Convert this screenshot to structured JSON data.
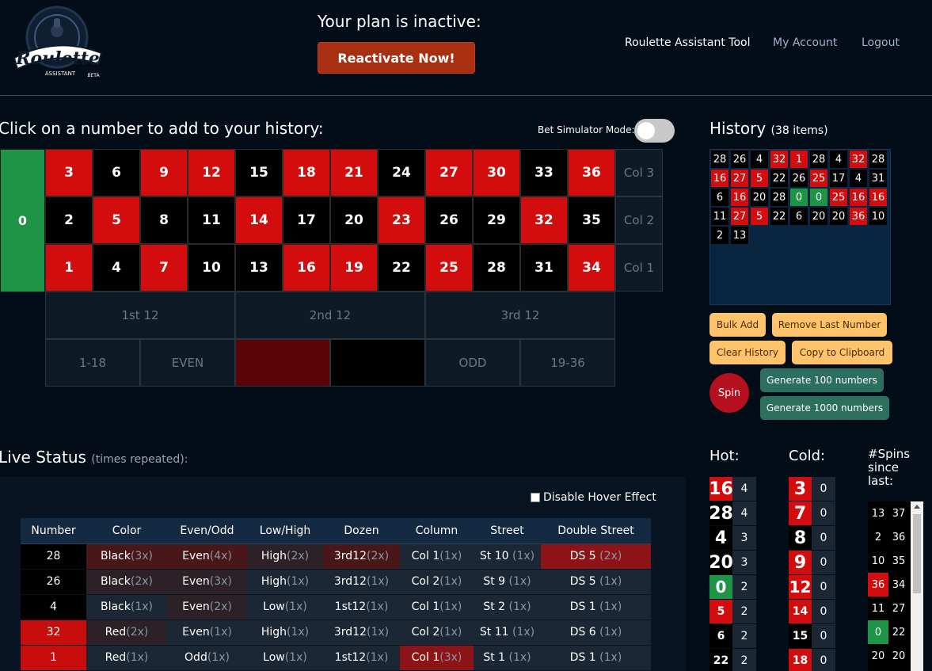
{
  "header": {
    "logo_text": "Roulette",
    "logo_sub": "ASSISTANT",
    "logo_beta": "BETA",
    "plan_text": "Your plan is inactive:",
    "reactivate_label": "Reactivate Now!",
    "nav": [
      "Roulette Assistant Tool",
      "My Account",
      "Logout"
    ]
  },
  "board": {
    "title": "Click on a number to add to your history:",
    "sim_label": "Bet Simulator Mode:",
    "zero": "0",
    "rows": [
      [
        {
          "n": "3",
          "c": "red"
        },
        {
          "n": "6",
          "c": "black"
        },
        {
          "n": "9",
          "c": "red"
        },
        {
          "n": "12",
          "c": "red"
        },
        {
          "n": "15",
          "c": "black"
        },
        {
          "n": "18",
          "c": "red"
        },
        {
          "n": "21",
          "c": "red"
        },
        {
          "n": "24",
          "c": "black"
        },
        {
          "n": "27",
          "c": "red"
        },
        {
          "n": "30",
          "c": "red"
        },
        {
          "n": "33",
          "c": "black"
        },
        {
          "n": "36",
          "c": "red"
        }
      ],
      [
        {
          "n": "2",
          "c": "black"
        },
        {
          "n": "5",
          "c": "red"
        },
        {
          "n": "8",
          "c": "black"
        },
        {
          "n": "11",
          "c": "black"
        },
        {
          "n": "14",
          "c": "red"
        },
        {
          "n": "17",
          "c": "black"
        },
        {
          "n": "20",
          "c": "black"
        },
        {
          "n": "23",
          "c": "red"
        },
        {
          "n": "26",
          "c": "black"
        },
        {
          "n": "29",
          "c": "black"
        },
        {
          "n": "32",
          "c": "red"
        },
        {
          "n": "35",
          "c": "black"
        }
      ],
      [
        {
          "n": "1",
          "c": "red"
        },
        {
          "n": "4",
          "c": "black"
        },
        {
          "n": "7",
          "c": "red"
        },
        {
          "n": "10",
          "c": "black"
        },
        {
          "n": "13",
          "c": "black"
        },
        {
          "n": "16",
          "c": "red"
        },
        {
          "n": "19",
          "c": "red"
        },
        {
          "n": "22",
          "c": "black"
        },
        {
          "n": "25",
          "c": "red"
        },
        {
          "n": "28",
          "c": "black"
        },
        {
          "n": "31",
          "c": "black"
        },
        {
          "n": "34",
          "c": "red"
        }
      ]
    ],
    "columns": [
      "Col 3",
      "Col 2",
      "Col 1"
    ],
    "dozens": [
      "1st 12",
      "2nd 12",
      "3rd 12"
    ],
    "outside": [
      "1-18",
      "EVEN",
      "",
      "",
      "ODD",
      "19-36"
    ]
  },
  "history": {
    "title": "History",
    "count": "(38 items)",
    "items": [
      {
        "n": "28",
        "c": "black"
      },
      {
        "n": "26",
        "c": "black"
      },
      {
        "n": "4",
        "c": "black"
      },
      {
        "n": "32",
        "c": "red"
      },
      {
        "n": "1",
        "c": "red"
      },
      {
        "n": "28",
        "c": "black"
      },
      {
        "n": "4",
        "c": "black"
      },
      {
        "n": "32",
        "c": "red"
      },
      {
        "n": "28",
        "c": "black"
      },
      {
        "n": "16",
        "c": "red"
      },
      {
        "n": "27",
        "c": "red"
      },
      {
        "n": "5",
        "c": "red"
      },
      {
        "n": "22",
        "c": "black"
      },
      {
        "n": "26",
        "c": "black"
      },
      {
        "n": "25",
        "c": "red"
      },
      {
        "n": "17",
        "c": "black"
      },
      {
        "n": "4",
        "c": "black"
      },
      {
        "n": "31",
        "c": "black"
      },
      {
        "n": "6",
        "c": "black"
      },
      {
        "n": "16",
        "c": "red"
      },
      {
        "n": "20",
        "c": "black"
      },
      {
        "n": "28",
        "c": "black"
      },
      {
        "n": "0",
        "c": "green"
      },
      {
        "n": "0",
        "c": "green"
      },
      {
        "n": "25",
        "c": "red"
      },
      {
        "n": "16",
        "c": "red"
      },
      {
        "n": "16",
        "c": "red"
      },
      {
        "n": "11",
        "c": "black"
      },
      {
        "n": "27",
        "c": "red"
      },
      {
        "n": "5",
        "c": "red"
      },
      {
        "n": "22",
        "c": "black"
      },
      {
        "n": "6",
        "c": "black"
      },
      {
        "n": "20",
        "c": "black"
      },
      {
        "n": "20",
        "c": "black"
      },
      {
        "n": "36",
        "c": "red"
      },
      {
        "n": "10",
        "c": "black"
      },
      {
        "n": "2",
        "c": "black"
      },
      {
        "n": "13",
        "c": "black"
      }
    ],
    "buttons": {
      "bulk_add": "Bulk Add",
      "remove_last": "Remove Last Number",
      "clear": "Clear History",
      "copy": "Copy to Clipboard",
      "spin": "Spin",
      "gen100": "Generate 100 numbers",
      "gen1000": "Generate 1000 numbers"
    }
  },
  "live": {
    "title": "Live Status",
    "subtitle": "(times repeated):",
    "hover_label": "Disable Hover Effect",
    "headers": [
      "Number",
      "Color",
      "Even/Odd",
      "Low/High",
      "Dozen",
      "Column",
      "Street",
      "Double Street"
    ],
    "rows": [
      {
        "num": "28",
        "nc": "black",
        "cells": [
          [
            "Black",
            "(3x)",
            2
          ],
          [
            "Even",
            "(4x)",
            2
          ],
          [
            "High",
            "(2x)",
            1
          ],
          [
            "3rd12",
            "(2x)",
            2
          ],
          [
            "Col 1",
            "(1x)",
            0
          ],
          [
            "St 10 ",
            "(1x)",
            0
          ],
          [
            "DS 5 ",
            "(2x)",
            3
          ]
        ]
      },
      {
        "num": "26",
        "nc": "black",
        "cells": [
          [
            "Black",
            "(2x)",
            1
          ],
          [
            "Even",
            "(3x)",
            1
          ],
          [
            "High",
            "(1x)",
            0
          ],
          [
            "3rd12",
            "(1x)",
            0
          ],
          [
            "Col 2",
            "(1x)",
            0
          ],
          [
            "St 9 ",
            "(1x)",
            0
          ],
          [
            "DS 5 ",
            "(1x)",
            0
          ]
        ]
      },
      {
        "num": "4",
        "nc": "black",
        "cells": [
          [
            "Black",
            "(1x)",
            0
          ],
          [
            "Even",
            "(2x)",
            1
          ],
          [
            "Low",
            "(1x)",
            0
          ],
          [
            "1st12",
            "(1x)",
            0
          ],
          [
            "Col 1",
            "(1x)",
            0
          ],
          [
            "St 2 ",
            "(1x)",
            0
          ],
          [
            "DS 1 ",
            "(1x)",
            0
          ]
        ]
      },
      {
        "num": "32",
        "nc": "red",
        "cells": [
          [
            "Red",
            "(2x)",
            1
          ],
          [
            "Even",
            "(1x)",
            0
          ],
          [
            "High",
            "(1x)",
            0
          ],
          [
            "3rd12",
            "(1x)",
            0
          ],
          [
            "Col 2",
            "(1x)",
            0
          ],
          [
            "St 11 ",
            "(1x)",
            0
          ],
          [
            "DS 6 ",
            "(1x)",
            0
          ]
        ]
      },
      {
        "num": "1",
        "nc": "red",
        "cells": [
          [
            "Red",
            "(1x)",
            0
          ],
          [
            "Odd",
            "(1x)",
            0
          ],
          [
            "Low",
            "(1x)",
            0
          ],
          [
            "1st12",
            "(1x)",
            0
          ],
          [
            "Col 1",
            "(3x)",
            3
          ],
          [
            "St 1 ",
            "(1x)",
            0
          ],
          [
            "DS 1 ",
            "(1x)",
            0
          ]
        ]
      }
    ]
  },
  "hot": {
    "title": "Hot:",
    "items": [
      {
        "n": "16",
        "c": "red",
        "cnt": "4"
      },
      {
        "n": "28",
        "c": "black",
        "cnt": "4"
      },
      {
        "n": "4",
        "c": "black",
        "cnt": "3"
      },
      {
        "n": "20",
        "c": "black",
        "cnt": "3"
      },
      {
        "n": "0",
        "c": "green",
        "cnt": "2"
      },
      {
        "n": "5",
        "c": "red",
        "cnt": "2"
      },
      {
        "n": "6",
        "c": "black",
        "cnt": "2"
      },
      {
        "n": "22",
        "c": "black",
        "cnt": "2"
      }
    ]
  },
  "cold": {
    "title": "Cold:",
    "items": [
      {
        "n": "3",
        "c": "red",
        "cnt": "0"
      },
      {
        "n": "7",
        "c": "red",
        "cnt": "0"
      },
      {
        "n": "8",
        "c": "black",
        "cnt": "0"
      },
      {
        "n": "9",
        "c": "red",
        "cnt": "0"
      },
      {
        "n": "12",
        "c": "red",
        "cnt": "0"
      },
      {
        "n": "14",
        "c": "red",
        "cnt": "0"
      },
      {
        "n": "15",
        "c": "black",
        "cnt": "0"
      },
      {
        "n": "18",
        "c": "red",
        "cnt": "0"
      }
    ]
  },
  "spins": {
    "title_lines": [
      "#Spins",
      "since",
      "last:"
    ],
    "items": [
      {
        "n": "13",
        "c": "black",
        "cnt": "37"
      },
      {
        "n": "2",
        "c": "black",
        "cnt": "36"
      },
      {
        "n": "10",
        "c": "black",
        "cnt": "35"
      },
      {
        "n": "36",
        "c": "red",
        "cnt": "34"
      },
      {
        "n": "11",
        "c": "black",
        "cnt": "27"
      },
      {
        "n": "0",
        "c": "green",
        "cnt": "22"
      },
      {
        "n": "20",
        "c": "black",
        "cnt": "20"
      }
    ]
  },
  "colors": {
    "red": "#d30d0d",
    "green": "#1e9447",
    "accent": "#a82f12"
  }
}
